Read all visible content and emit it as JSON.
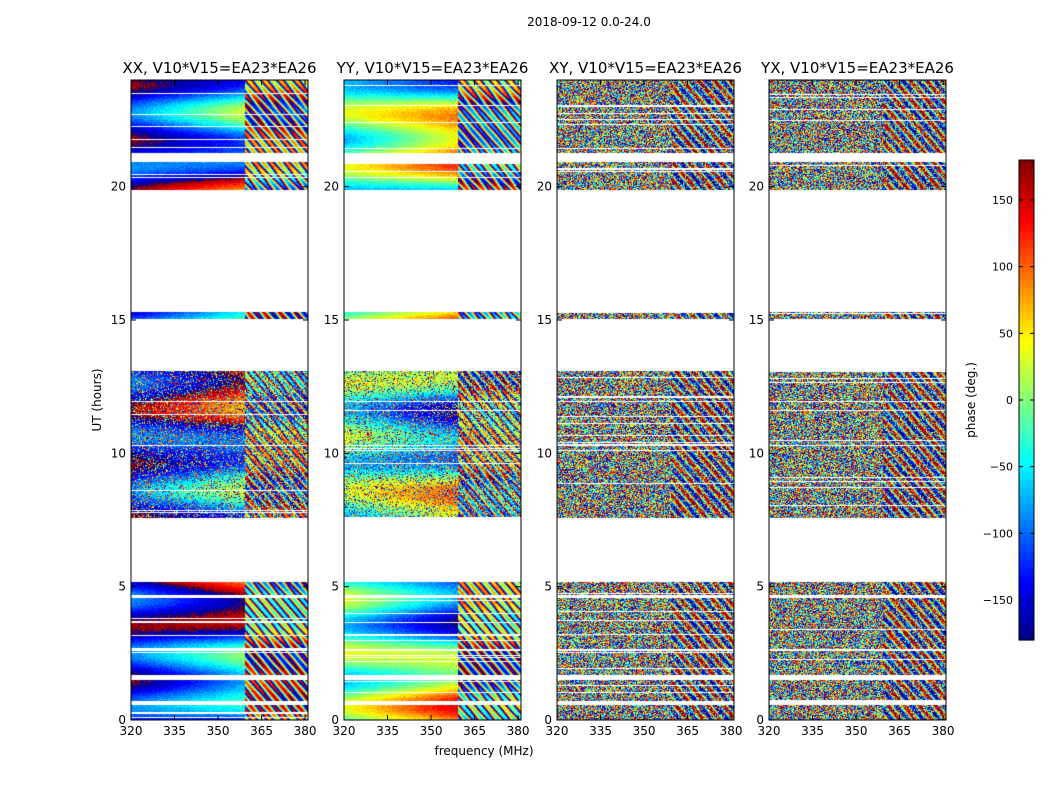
{
  "figure": {
    "suptitle": "2018-09-12 0.0-24.0"
  },
  "chart_data": {
    "type": "heatmap",
    "title": "2018-09-12 0.0-24.0",
    "xlabel": "frequency (MHz)",
    "ylabel": "UT (hours)",
    "xlim": [
      320,
      381
    ],
    "ylim": [
      0,
      24
    ],
    "xticks": [
      "320",
      "335",
      "350",
      "365",
      "380"
    ],
    "xtick_values": [
      320,
      335,
      350,
      365,
      380
    ],
    "yticks": [
      "0",
      "5",
      "10",
      "15",
      "20"
    ],
    "ytick_values": [
      0,
      5,
      10,
      15,
      20
    ],
    "colorbar": {
      "label": "phase (deg.)",
      "range": [
        -180,
        180
      ],
      "ticks": [
        "150",
        "100",
        "50",
        "0",
        "−50",
        "−100",
        "−150"
      ],
      "tick_values": [
        150,
        100,
        50,
        0,
        -50,
        -100,
        -150
      ],
      "colormap": "jet"
    },
    "data_bands_ut_hours": [
      [
        0.0,
        0.6
      ],
      [
        0.75,
        1.5
      ],
      [
        1.7,
        2.6
      ],
      [
        2.7,
        4.6
      ],
      [
        4.7,
        5.2
      ],
      [
        7.6,
        10.3
      ],
      [
        10.35,
        11.95
      ],
      [
        12.0,
        13.1
      ],
      [
        15.05,
        15.3
      ],
      [
        19.9,
        20.95
      ],
      [
        21.3,
        24.0
      ]
    ],
    "panels": [
      {
        "title": "XX, V10*V15=EA23*EA26",
        "style": "coherent"
      },
      {
        "title": "YY, V10*V15=EA23*EA26",
        "style": "coherent"
      },
      {
        "title": "XY, V10*V15=EA23*EA26",
        "style": "noisy"
      },
      {
        "title": "YX, V10*V15=EA23*EA26",
        "style": "noisy"
      }
    ]
  }
}
